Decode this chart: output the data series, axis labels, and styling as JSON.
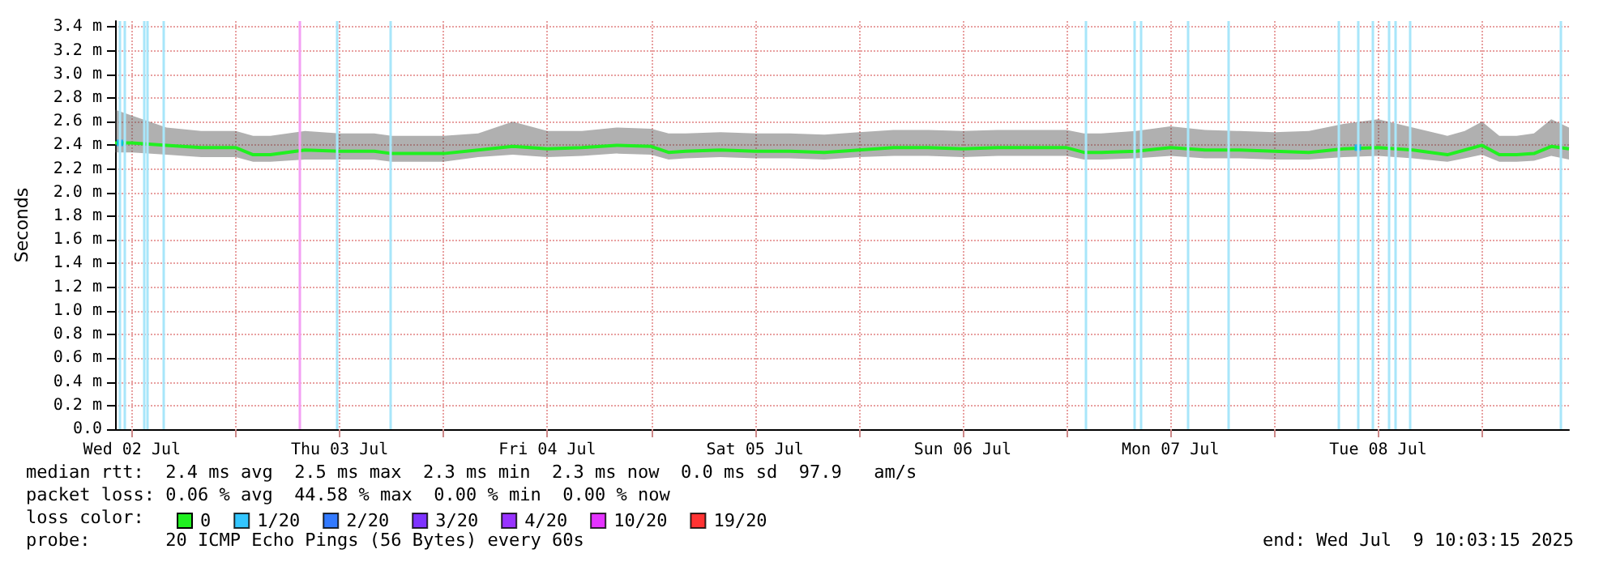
{
  "chart_data": {
    "type": "line",
    "ylabel": "Seconds",
    "x": [
      "2025-07-02T10:03",
      "2025-07-02T12:00",
      "2025-07-02T16:00",
      "2025-07-02T20:00",
      "2025-07-03T00:00",
      "2025-07-03T02:00",
      "2025-07-03T04:00",
      "2025-07-03T08:00",
      "2025-07-03T12:00",
      "2025-07-03T16:00",
      "2025-07-03T18:00",
      "2025-07-03T20:00",
      "2025-07-04T00:00",
      "2025-07-04T04:00",
      "2025-07-04T08:00",
      "2025-07-04T12:00",
      "2025-07-04T16:00",
      "2025-07-04T20:00",
      "2025-07-05T00:00",
      "2025-07-05T02:00",
      "2025-07-05T04:00",
      "2025-07-05T08:00",
      "2025-07-05T12:00",
      "2025-07-05T16:00",
      "2025-07-05T20:00",
      "2025-07-06T00:00",
      "2025-07-06T04:00",
      "2025-07-06T08:00",
      "2025-07-06T12:00",
      "2025-07-06T16:00",
      "2025-07-06T20:00",
      "2025-07-07T00:00",
      "2025-07-07T02:00",
      "2025-07-07T04:00",
      "2025-07-07T08:00",
      "2025-07-07T12:00",
      "2025-07-07T16:00",
      "2025-07-07T20:00",
      "2025-07-08T00:00",
      "2025-07-08T04:00",
      "2025-07-08T08:00",
      "2025-07-08T12:00",
      "2025-07-08T16:00",
      "2025-07-08T20:00",
      "2025-07-08T22:00",
      "2025-07-09T00:00",
      "2025-07-09T02:00",
      "2025-07-09T04:00",
      "2025-07-09T06:00",
      "2025-07-09T08:00",
      "2025-07-09T10:03"
    ],
    "series": [
      {
        "name": "0",
        "color": "#20f020",
        "values": [
          2.42,
          2.42,
          2.4,
          2.38,
          2.38,
          2.32,
          2.32,
          2.36,
          2.35,
          2.35,
          2.33,
          2.33,
          2.33,
          2.36,
          2.39,
          2.37,
          2.38,
          2.4,
          2.39,
          2.34,
          2.35,
          2.36,
          2.35,
          2.35,
          2.34,
          2.36,
          2.38,
          2.38,
          2.37,
          2.38,
          2.38,
          2.38,
          2.34,
          2.34,
          2.35,
          2.38,
          2.36,
          2.36,
          2.35,
          2.34,
          2.37,
          2.38,
          2.36,
          2.32,
          2.36,
          2.4,
          2.32,
          2.32,
          2.33,
          2.39,
          2.37
        ],
        "lower": [
          2.34,
          2.34,
          2.32,
          2.3,
          2.3,
          2.26,
          2.26,
          2.28,
          2.28,
          2.28,
          2.26,
          2.26,
          2.26,
          2.3,
          2.32,
          2.3,
          2.31,
          2.33,
          2.32,
          2.28,
          2.29,
          2.3,
          2.29,
          2.29,
          2.28,
          2.3,
          2.31,
          2.31,
          2.3,
          2.31,
          2.31,
          2.31,
          2.28,
          2.28,
          2.29,
          2.31,
          2.29,
          2.29,
          2.28,
          2.28,
          2.3,
          2.31,
          2.29,
          2.26,
          2.29,
          2.32,
          2.26,
          2.26,
          2.27,
          2.31,
          2.28
        ],
        "upper": [
          2.7,
          2.65,
          2.55,
          2.52,
          2.52,
          2.48,
          2.48,
          2.52,
          2.5,
          2.5,
          2.48,
          2.48,
          2.48,
          2.5,
          2.6,
          2.52,
          2.52,
          2.55,
          2.54,
          2.5,
          2.5,
          2.51,
          2.5,
          2.5,
          2.49,
          2.51,
          2.53,
          2.53,
          2.52,
          2.53,
          2.53,
          2.53,
          2.5,
          2.5,
          2.52,
          2.56,
          2.53,
          2.52,
          2.51,
          2.52,
          2.58,
          2.62,
          2.55,
          2.48,
          2.52,
          2.6,
          2.48,
          2.48,
          2.5,
          2.62,
          2.55
        ]
      },
      {
        "name": "1/20",
        "color": "#00b8ff",
        "type": "scatter",
        "x": [
          "2025-07-02T10:37",
          "2025-07-08T09:39"
        ],
        "values": [
          2.42,
          2.38
        ]
      },
      {
        "name": "2/20",
        "color": "#0059ff",
        "type": "scatter",
        "values": [
          null,
          null,
          null,
          null,
          null,
          null,
          null,
          null,
          null,
          null,
          null,
          null,
          null,
          null,
          null,
          null,
          null,
          null,
          null,
          null,
          null,
          null,
          null,
          null,
          null,
          null,
          null,
          null,
          null,
          null,
          null,
          null,
          null,
          null,
          null,
          null,
          null,
          null,
          null,
          null,
          null,
          null,
          null,
          null,
          null,
          null,
          null,
          null,
          null,
          null,
          null
        ]
      },
      {
        "name": "3/20",
        "color": "#5e00ff",
        "type": "scatter",
        "values": [
          null,
          null,
          null,
          null,
          null,
          null,
          null,
          null,
          null,
          null,
          null,
          null,
          null,
          null,
          null,
          null,
          null,
          null,
          null,
          null,
          null,
          null,
          null,
          null,
          null,
          null,
          null,
          null,
          null,
          null,
          null,
          null,
          null,
          null,
          null,
          null,
          null,
          null,
          null,
          null,
          null,
          null,
          null,
          null,
          null,
          null,
          null,
          null,
          null,
          null,
          null
        ]
      },
      {
        "name": "4/20",
        "color": "#7e00ff",
        "type": "scatter",
        "values": [
          null,
          null,
          null,
          null,
          null,
          null,
          null,
          null,
          null,
          null,
          null,
          null,
          null,
          null,
          null,
          null,
          null,
          null,
          null,
          null,
          null,
          null,
          null,
          null,
          null,
          null,
          null,
          null,
          null,
          null,
          null,
          null,
          null,
          null,
          null,
          null,
          null,
          null,
          null,
          null,
          null,
          null,
          null,
          null,
          null,
          null,
          null,
          null,
          null,
          null,
          null
        ]
      },
      {
        "name": "10/20",
        "color": "#dd00ff",
        "type": "scatter",
        "values": [
          null,
          null,
          null,
          null,
          null,
          null,
          null,
          null,
          null,
          null,
          null,
          null,
          null,
          null,
          null,
          null,
          null,
          null,
          null,
          null,
          null,
          null,
          null,
          null,
          null,
          null,
          null,
          null,
          null,
          null,
          null,
          null,
          null,
          null,
          null,
          null,
          null,
          null,
          null,
          null,
          null,
          null,
          null,
          null,
          null,
          null,
          null,
          null,
          null,
          null,
          null
        ]
      },
      {
        "name": "19/20",
        "color": "#ff0000",
        "type": "scatter",
        "values": [
          null,
          null,
          null,
          null,
          null,
          null,
          null,
          null,
          null,
          null,
          null,
          null,
          null,
          null,
          null,
          null,
          null,
          null,
          null,
          null,
          null,
          null,
          null,
          null,
          null,
          null,
          null,
          null,
          null,
          null,
          null,
          null,
          null,
          null,
          null,
          null,
          null,
          null,
          null,
          null,
          null,
          null,
          null,
          null,
          null,
          null,
          null,
          null,
          null,
          null,
          null
        ]
      }
    ],
    "xlim": [
      "2025-07-02T10:03",
      "2025-07-09T10:03"
    ],
    "xticks": [
      {
        "value": "2025-07-02T12:00",
        "label": "Wed 02 Jul"
      },
      {
        "value": "2025-07-03T00:00",
        "label": null
      },
      {
        "value": "2025-07-03T12:00",
        "label": "Thu 03 Jul"
      },
      {
        "value": "2025-07-04T00:00",
        "label": null
      },
      {
        "value": "2025-07-04T12:00",
        "label": "Fri 04 Jul"
      },
      {
        "value": "2025-07-05T00:00",
        "label": null
      },
      {
        "value": "2025-07-05T12:00",
        "label": "Sat 05 Jul"
      },
      {
        "value": "2025-07-06T00:00",
        "label": null
      },
      {
        "value": "2025-07-06T12:00",
        "label": "Sun 06 Jul"
      },
      {
        "value": "2025-07-07T00:00",
        "label": null
      },
      {
        "value": "2025-07-07T12:00",
        "label": "Mon 07 Jul"
      },
      {
        "value": "2025-07-08T00:00",
        "label": null
      },
      {
        "value": "2025-07-08T12:00",
        "label": "Tue 08 Jul"
      },
      {
        "value": "2025-07-09T00:00",
        "label": null
      }
    ],
    "ylim": [
      0,
      3.45
    ],
    "yticks": [
      {
        "value": 0,
        "label": "0.0"
      },
      {
        "value": 0.2,
        "label": "0.2 m"
      },
      {
        "value": 0.4,
        "label": "0.4 m"
      },
      {
        "value": 0.6,
        "label": "0.6 m"
      },
      {
        "value": 0.8,
        "label": "0.8 m"
      },
      {
        "value": 1.0,
        "label": "1.0 m"
      },
      {
        "value": 1.2,
        "label": "1.2 m"
      },
      {
        "value": 1.4,
        "label": "1.4 m"
      },
      {
        "value": 1.6,
        "label": "1.6 m"
      },
      {
        "value": 1.8,
        "label": "1.8 m"
      },
      {
        "value": 2.0,
        "label": "2.0 m"
      },
      {
        "value": 2.2,
        "label": "2.2 m"
      },
      {
        "value": 2.4,
        "label": "2.4 m"
      },
      {
        "value": 2.6,
        "label": "2.6 m"
      },
      {
        "value": 2.8,
        "label": "2.8 m"
      },
      {
        "value": 3.0,
        "label": "3.0 m"
      },
      {
        "value": 3.2,
        "label": "3.2 m"
      },
      {
        "value": 3.4,
        "label": "3.4 m"
      }
    ],
    "grid": true,
    "legend": "bottom left",
    "ref_lines": [
      {
        "axis": "x",
        "value": "2025-07-02T10:37",
        "color": "#a8e6fa"
      },
      {
        "axis": "x",
        "value": "2025-07-02T11:10",
        "color": "#a8e6fa"
      },
      {
        "axis": "x",
        "value": "2025-07-02T13:25",
        "color": "#a8e6fa"
      },
      {
        "axis": "x",
        "value": "2025-07-02T13:47",
        "color": "#a8e6fa"
      },
      {
        "axis": "x",
        "value": "2025-07-02T15:39",
        "color": "#a8e6fa"
      },
      {
        "axis": "x",
        "value": "2025-07-03T07:21",
        "color": "#f4a0f4"
      },
      {
        "axis": "x",
        "value": "2025-07-03T11:39",
        "color": "#a8e6fa"
      },
      {
        "axis": "x",
        "value": "2025-07-03T17:48",
        "color": "#a8e6fa"
      },
      {
        "axis": "x",
        "value": "2025-07-07T02:07",
        "color": "#a8e6fa"
      },
      {
        "axis": "x",
        "value": "2025-07-07T07:43",
        "color": "#a8e6fa"
      },
      {
        "axis": "x",
        "value": "2025-07-07T08:39",
        "color": "#a8e6fa"
      },
      {
        "axis": "x",
        "value": "2025-07-07T14:03",
        "color": "#a8e6fa"
      },
      {
        "axis": "x",
        "value": "2025-07-07T18:45",
        "color": "#a8e6fa"
      },
      {
        "axis": "x",
        "value": "2025-07-08T07:27",
        "color": "#a8e6fa"
      },
      {
        "axis": "x",
        "value": "2025-07-08T09:39",
        "color": "#a8e6fa"
      },
      {
        "axis": "x",
        "value": "2025-07-08T11:21",
        "color": "#a8e6fa"
      },
      {
        "axis": "x",
        "value": "2025-07-08T13:15",
        "color": "#a8e6fa"
      },
      {
        "axis": "x",
        "value": "2025-07-08T13:57",
        "color": "#a8e6fa"
      },
      {
        "axis": "x",
        "value": "2025-07-08T15:39",
        "color": "#a8e6fa"
      },
      {
        "axis": "x",
        "value": "2025-07-09T09:03",
        "color": "#a8e6fa"
      }
    ],
    "annotations": [
      "median rtt:  2.4 ms avg  2.5 ms max  2.3 ms min  2.3 ms now  0.0 ms sd  97.9   am/s",
      "packet loss: 0.06 % avg  44.58 % max  0.00 % min  0.00 % now",
      "loss color:",
      "probe:       20 ICMP Echo Pings (56 Bytes) every 60s",
      "end: Wed Jul  9 10:03:15 2025"
    ]
  }
}
